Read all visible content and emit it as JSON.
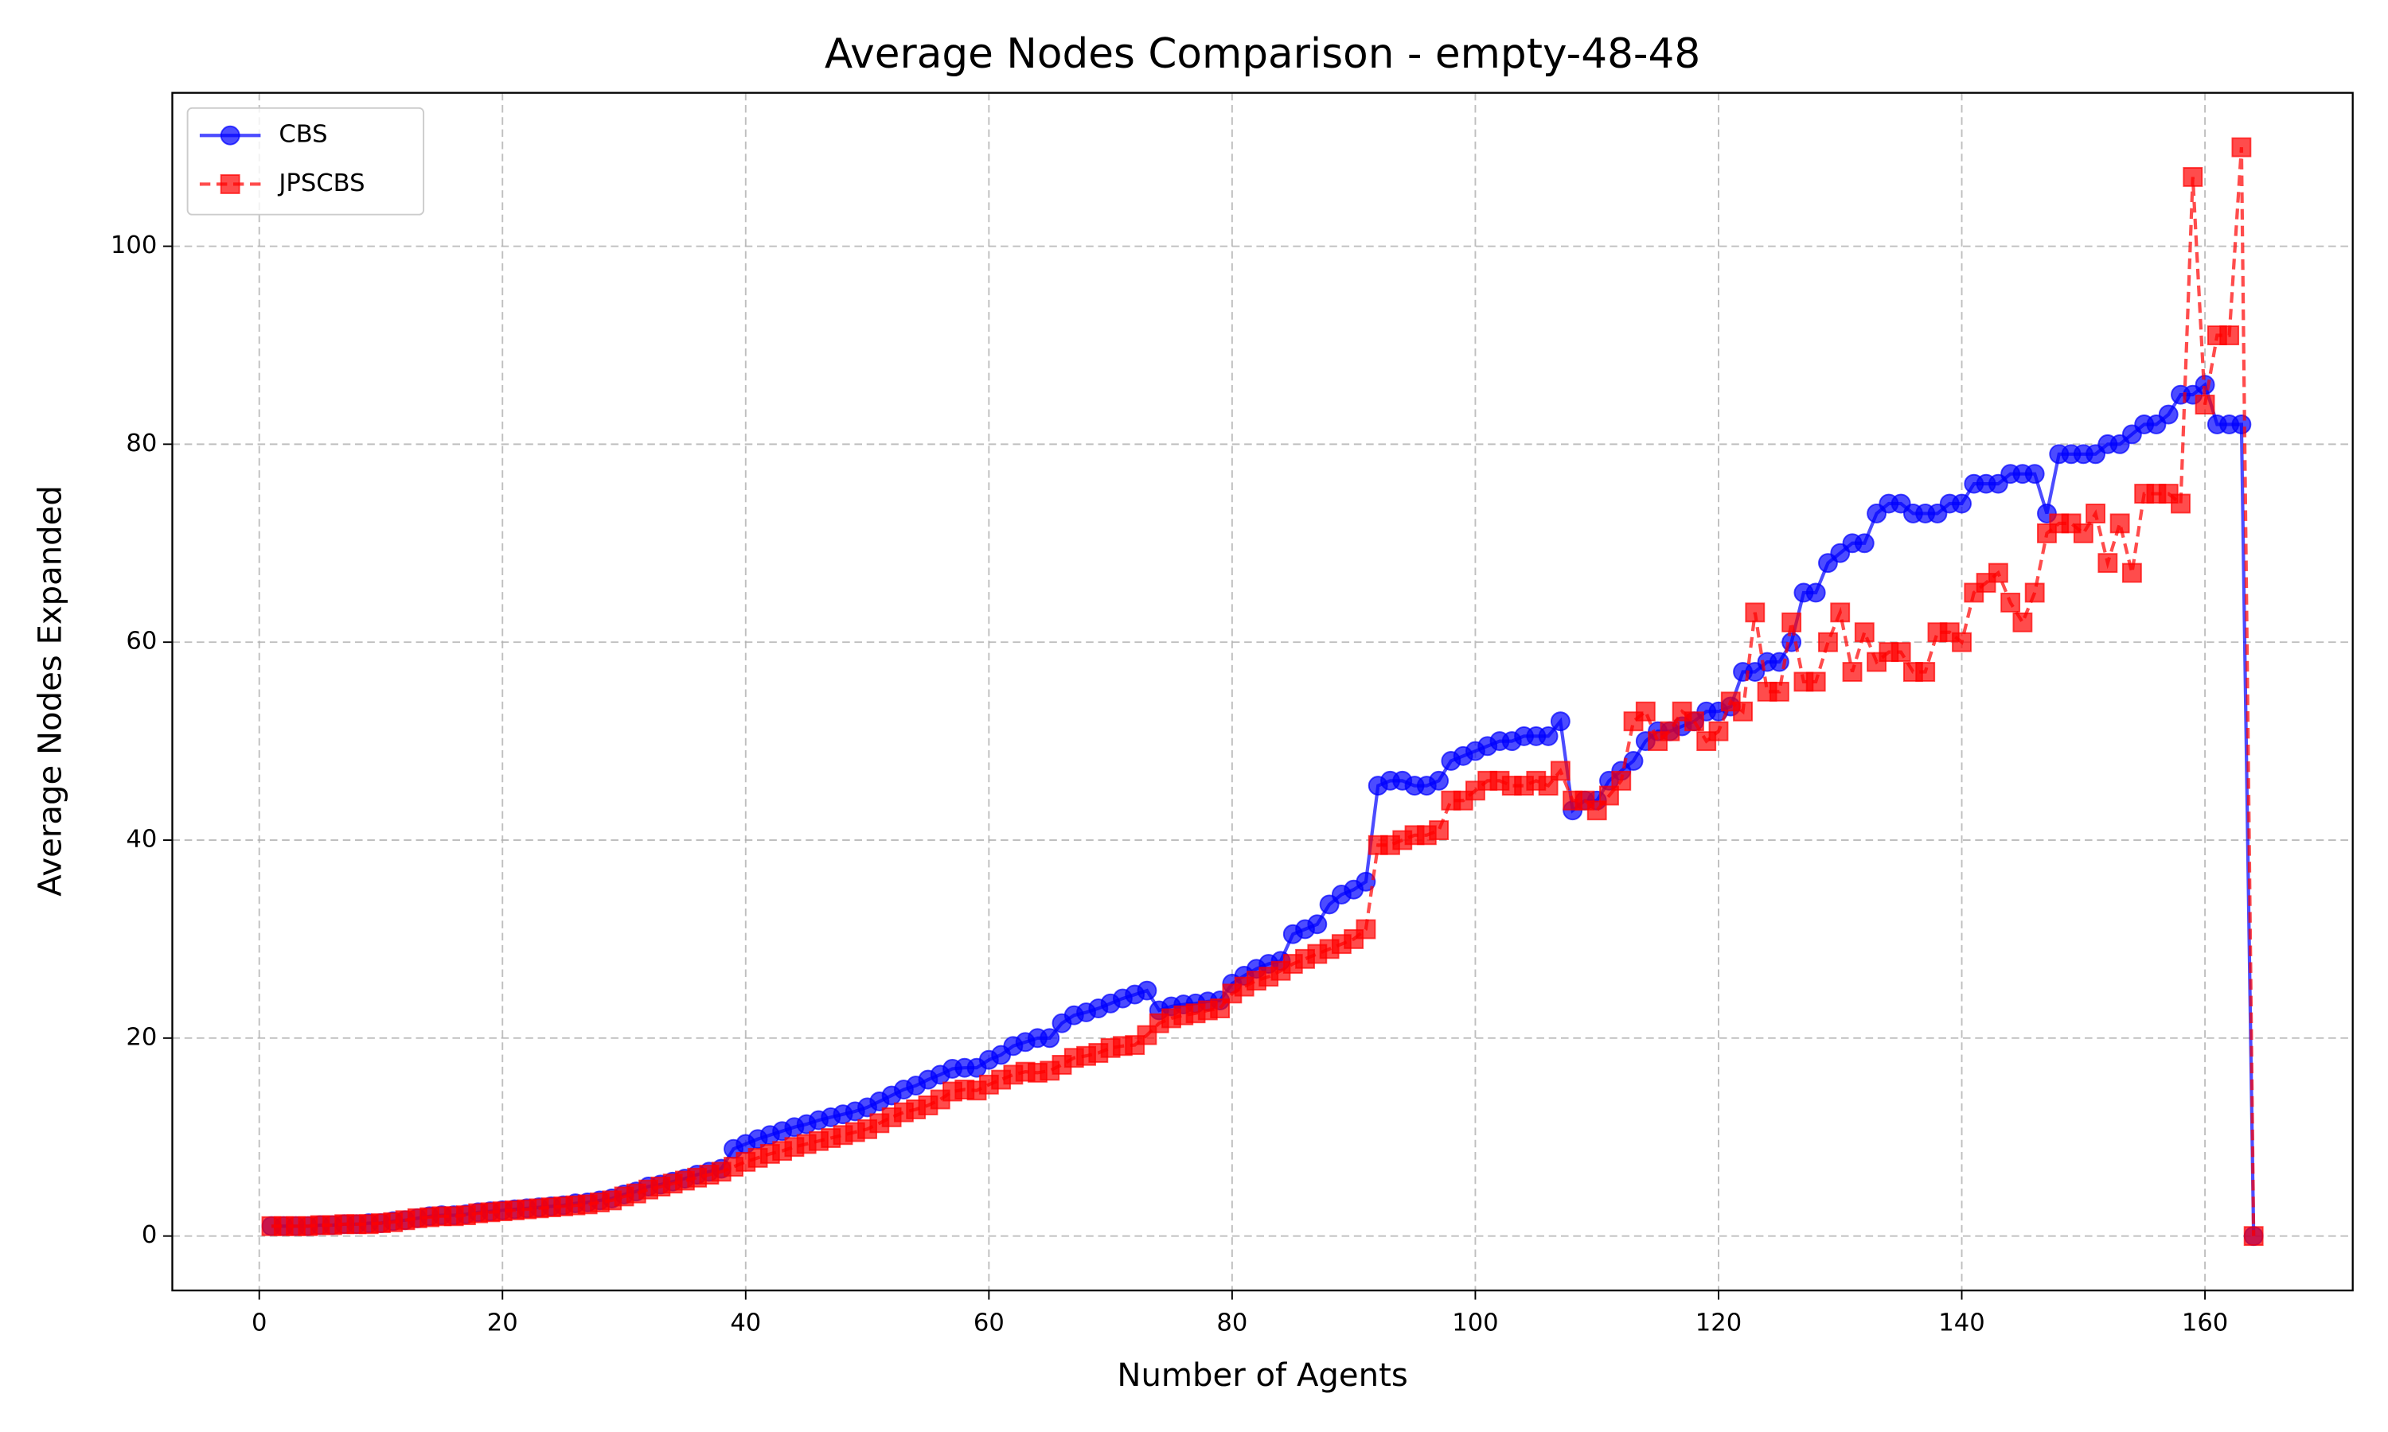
{
  "chart_data": {
    "type": "line",
    "title": "Average Nodes Comparison - empty-48-48",
    "x_label": "Number of Agents",
    "y_label": "Average Nodes Expanded",
    "x": [
      1,
      2,
      3,
      4,
      5,
      6,
      7,
      8,
      9,
      10,
      11,
      12,
      13,
      14,
      15,
      16,
      17,
      18,
      19,
      20,
      21,
      22,
      23,
      24,
      25,
      26,
      27,
      28,
      29,
      30,
      31,
      32,
      33,
      34,
      35,
      36,
      37,
      38,
      39,
      40,
      41,
      42,
      43,
      44,
      45,
      46,
      47,
      48,
      49,
      50,
      51,
      52,
      53,
      54,
      55,
      56,
      57,
      58,
      59,
      60,
      61,
      62,
      63,
      64,
      65,
      66,
      67,
      68,
      69,
      70,
      71,
      72,
      73,
      74,
      75,
      76,
      77,
      78,
      79,
      80,
      81,
      82,
      83,
      84,
      85,
      86,
      87,
      88,
      89,
      90,
      91,
      92,
      93,
      94,
      95,
      96,
      97,
      98,
      99,
      100,
      101,
      102,
      103,
      104,
      105,
      106,
      107,
      108,
      109,
      110,
      111,
      112,
      113,
      114,
      115,
      116,
      117,
      118,
      119,
      120,
      121,
      122,
      123,
      124,
      125,
      126,
      127,
      128,
      129,
      130,
      131,
      132,
      133,
      134,
      135,
      136,
      137,
      138,
      139,
      140,
      141,
      142,
      143,
      144,
      145,
      146,
      147,
      148,
      149,
      150,
      151,
      152,
      153,
      154,
      155,
      156,
      157,
      158,
      159,
      160,
      161,
      162,
      163,
      164
    ],
    "series": [
      {
        "name": "CBS",
        "color": "blue",
        "marker": "circle",
        "dashed": false,
        "values": [
          1,
          1,
          1,
          1,
          1.1,
          1.1,
          1.2,
          1.2,
          1.3,
          1.3,
          1.5,
          1.6,
          1.8,
          2,
          2.1,
          2.1,
          2.2,
          2.4,
          2.5,
          2.6,
          2.7,
          2.8,
          2.9,
          3,
          3.1,
          3.3,
          3.4,
          3.6,
          3.8,
          4.2,
          4.5,
          5,
          5.2,
          5.5,
          5.8,
          6.2,
          6.5,
          6.8,
          8.8,
          9.3,
          9.8,
          10.2,
          10.6,
          11,
          11.3,
          11.7,
          12,
          12.3,
          12.6,
          13,
          13.6,
          14.2,
          14.8,
          15.2,
          15.8,
          16.3,
          16.9,
          17,
          17,
          17.8,
          18.3,
          19.2,
          19.6,
          20,
          20,
          21.5,
          22.3,
          22.6,
          23,
          23.5,
          24,
          24.4,
          24.8,
          22.8,
          23.2,
          23.4,
          23.5,
          23.7,
          23.8,
          25.5,
          26.3,
          27,
          27.5,
          27.8,
          30.5,
          31,
          31.5,
          33.5,
          34.5,
          35,
          35.8,
          45.5,
          46,
          46,
          45.5,
          45.5,
          46,
          48,
          48.5,
          49,
          49.5,
          50,
          50,
          50.5,
          50.5,
          50.5,
          52,
          43,
          44,
          44,
          46,
          47,
          48,
          50,
          51,
          51,
          51.5,
          52,
          53,
          53,
          53.5,
          57,
          57,
          58,
          58,
          60,
          65,
          65,
          68,
          69,
          70,
          70,
          73,
          74,
          74,
          73,
          73,
          73,
          74,
          74,
          76,
          76,
          76,
          77,
          77,
          77,
          73,
          79,
          79,
          79,
          79,
          80,
          80,
          81,
          82,
          82,
          83,
          85,
          85,
          86,
          82,
          82,
          82,
          0
        ]
      },
      {
        "name": "JPSCBS",
        "color": "red",
        "marker": "square",
        "dashed": true,
        "values": [
          1,
          1,
          1,
          1,
          1.1,
          1.1,
          1.2,
          1.2,
          1.2,
          1.3,
          1.4,
          1.6,
          1.8,
          1.9,
          2,
          2,
          2.1,
          2.3,
          2.4,
          2.5,
          2.6,
          2.7,
          2.8,
          2.9,
          3,
          3.1,
          3.2,
          3.4,
          3.6,
          4,
          4.3,
          4.7,
          5,
          5.3,
          5.6,
          5.9,
          6.2,
          6.5,
          7,
          7.5,
          7.9,
          8.3,
          8.6,
          9,
          9.3,
          9.6,
          9.9,
          10.2,
          10.5,
          10.8,
          11.4,
          12,
          12.5,
          12.8,
          13.2,
          13.8,
          14.6,
          14.8,
          14.7,
          15.3,
          15.8,
          16.3,
          16.6,
          16.5,
          16.7,
          17.3,
          18,
          18.2,
          18.5,
          19,
          19.2,
          19.3,
          20.3,
          21.5,
          22,
          22.3,
          22.5,
          22.8,
          23,
          24.5,
          25.2,
          25.8,
          26.2,
          26.8,
          27.5,
          28,
          28.5,
          29,
          29.5,
          30,
          31,
          39.5,
          39.5,
          40,
          40.5,
          40.5,
          41,
          44,
          44,
          45,
          46,
          46,
          45.5,
          45.5,
          46,
          45.5,
          47,
          44,
          44,
          43,
          44.5,
          46,
          52,
          53,
          50,
          51,
          53,
          52,
          50,
          51,
          54,
          53,
          63,
          55,
          55,
          62,
          56,
          56,
          60,
          63,
          57,
          61,
          58,
          59,
          59,
          57,
          57,
          61,
          61,
          60,
          65,
          66,
          67,
          64,
          62,
          65,
          71,
          72,
          72,
          71,
          73,
          68,
          72,
          67,
          75,
          75,
          75,
          74,
          107,
          84,
          91,
          91,
          110,
          0
        ]
      }
    ],
    "xlim": [
      -7.15,
      172.15
    ],
    "ylim": [
      -5.5,
      115.5
    ],
    "xticks": [
      0,
      20,
      40,
      60,
      80,
      100,
      120,
      140,
      160
    ],
    "yticks": [
      0,
      20,
      40,
      60,
      80,
      100
    ],
    "grid": true,
    "legend": "upper left"
  }
}
